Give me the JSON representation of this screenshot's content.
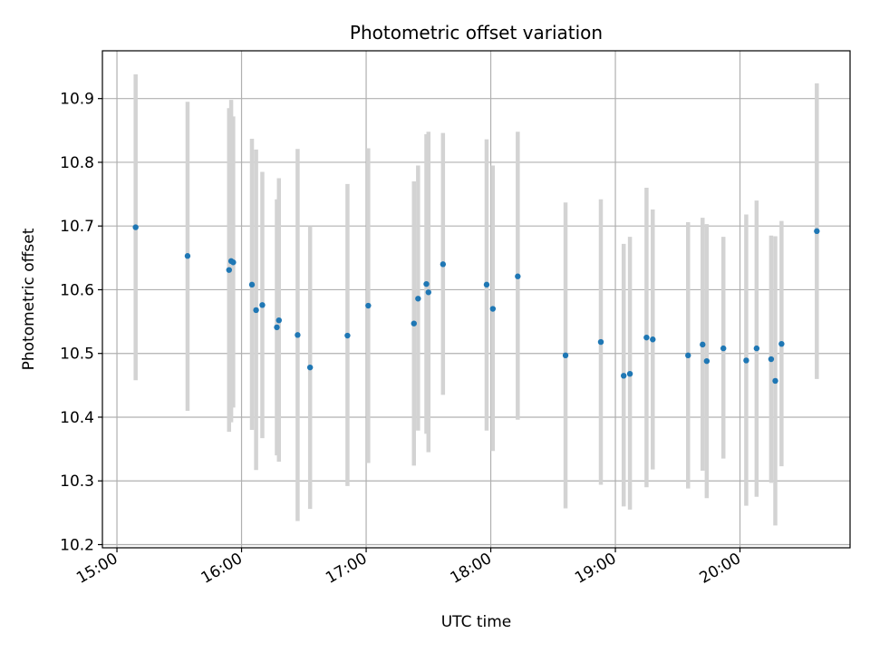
{
  "chart_data": {
    "type": "scatter",
    "title": "Photometric offset variation",
    "xlabel": "UTC time",
    "ylabel": "Photometric offset",
    "xlim": [
      "14:53",
      "20:53"
    ],
    "ylim": [
      10.195,
      10.975
    ],
    "grid": true,
    "x_ticks": [
      "15:00",
      "16:00",
      "17:00",
      "18:00",
      "19:00",
      "20:00"
    ],
    "y_ticks": [
      10.2,
      10.3,
      10.4,
      10.5,
      10.6,
      10.7,
      10.8,
      10.9
    ],
    "y_tick_labels": [
      "10.2",
      "10.3",
      "10.4",
      "10.5",
      "10.6",
      "10.7",
      "10.8",
      "10.9"
    ],
    "point_color": "#1f77b4",
    "errorbar_color": "#d3d3d3",
    "points": [
      {
        "time": "15:09",
        "y": 10.698,
        "lo": 10.458,
        "hi": 10.938
      },
      {
        "time": "15:34",
        "y": 10.653,
        "lo": 10.41,
        "hi": 10.895
      },
      {
        "time": "15:54",
        "y": 10.631,
        "lo": 10.377,
        "hi": 10.885
      },
      {
        "time": "15:55",
        "y": 10.645,
        "lo": 10.392,
        "hi": 10.898
      },
      {
        "time": "15:56",
        "y": 10.643,
        "lo": 10.415,
        "hi": 10.872
      },
      {
        "time": "16:05",
        "y": 10.608,
        "lo": 10.38,
        "hi": 10.837
      },
      {
        "time": "16:07",
        "y": 10.568,
        "lo": 10.317,
        "hi": 10.82
      },
      {
        "time": "16:10",
        "y": 10.576,
        "lo": 10.367,
        "hi": 10.785
      },
      {
        "time": "16:17",
        "y": 10.541,
        "lo": 10.34,
        "hi": 10.742
      },
      {
        "time": "16:18",
        "y": 10.552,
        "lo": 10.33,
        "hi": 10.775
      },
      {
        "time": "16:27",
        "y": 10.529,
        "lo": 10.237,
        "hi": 10.821
      },
      {
        "time": "16:33",
        "y": 10.478,
        "lo": 10.256,
        "hi": 10.7
      },
      {
        "time": "16:51",
        "y": 10.528,
        "lo": 10.292,
        "hi": 10.766
      },
      {
        "time": "17:01",
        "y": 10.575,
        "lo": 10.328,
        "hi": 10.822
      },
      {
        "time": "17:23",
        "y": 10.547,
        "lo": 10.324,
        "hi": 10.77
      },
      {
        "time": "17:25",
        "y": 10.586,
        "lo": 10.379,
        "hi": 10.795
      },
      {
        "time": "17:29",
        "y": 10.609,
        "lo": 10.374,
        "hi": 10.844
      },
      {
        "time": "17:30",
        "y": 10.596,
        "lo": 10.345,
        "hi": 10.848
      },
      {
        "time": "17:37",
        "y": 10.64,
        "lo": 10.435,
        "hi": 10.846
      },
      {
        "time": "17:58",
        "y": 10.608,
        "lo": 10.379,
        "hi": 10.836
      },
      {
        "time": "18:01",
        "y": 10.57,
        "lo": 10.347,
        "hi": 10.795
      },
      {
        "time": "18:13",
        "y": 10.621,
        "lo": 10.396,
        "hi": 10.848
      },
      {
        "time": "18:36",
        "y": 10.497,
        "lo": 10.257,
        "hi": 10.737
      },
      {
        "time": "18:53",
        "y": 10.518,
        "lo": 10.294,
        "hi": 10.742
      },
      {
        "time": "19:04",
        "y": 10.465,
        "lo": 10.26,
        "hi": 10.672
      },
      {
        "time": "19:07",
        "y": 10.468,
        "lo": 10.255,
        "hi": 10.683
      },
      {
        "time": "19:15",
        "y": 10.525,
        "lo": 10.29,
        "hi": 10.76
      },
      {
        "time": "19:18",
        "y": 10.522,
        "lo": 10.318,
        "hi": 10.726
      },
      {
        "time": "19:35",
        "y": 10.497,
        "lo": 10.288,
        "hi": 10.706
      },
      {
        "time": "19:42",
        "y": 10.514,
        "lo": 10.316,
        "hi": 10.713
      },
      {
        "time": "19:44",
        "y": 10.488,
        "lo": 10.273,
        "hi": 10.703
      },
      {
        "time": "19:52",
        "y": 10.508,
        "lo": 10.335,
        "hi": 10.683
      },
      {
        "time": "20:03",
        "y": 10.489,
        "lo": 10.261,
        "hi": 10.718
      },
      {
        "time": "20:08",
        "y": 10.508,
        "lo": 10.275,
        "hi": 10.74
      },
      {
        "time": "20:15",
        "y": 10.491,
        "lo": 10.297,
        "hi": 10.685
      },
      {
        "time": "20:17",
        "y": 10.457,
        "lo": 10.23,
        "hi": 10.684
      },
      {
        "time": "20:20",
        "y": 10.515,
        "lo": 10.323,
        "hi": 10.708
      },
      {
        "time": "20:37",
        "y": 10.692,
        "lo": 10.46,
        "hi": 10.924
      }
    ]
  }
}
